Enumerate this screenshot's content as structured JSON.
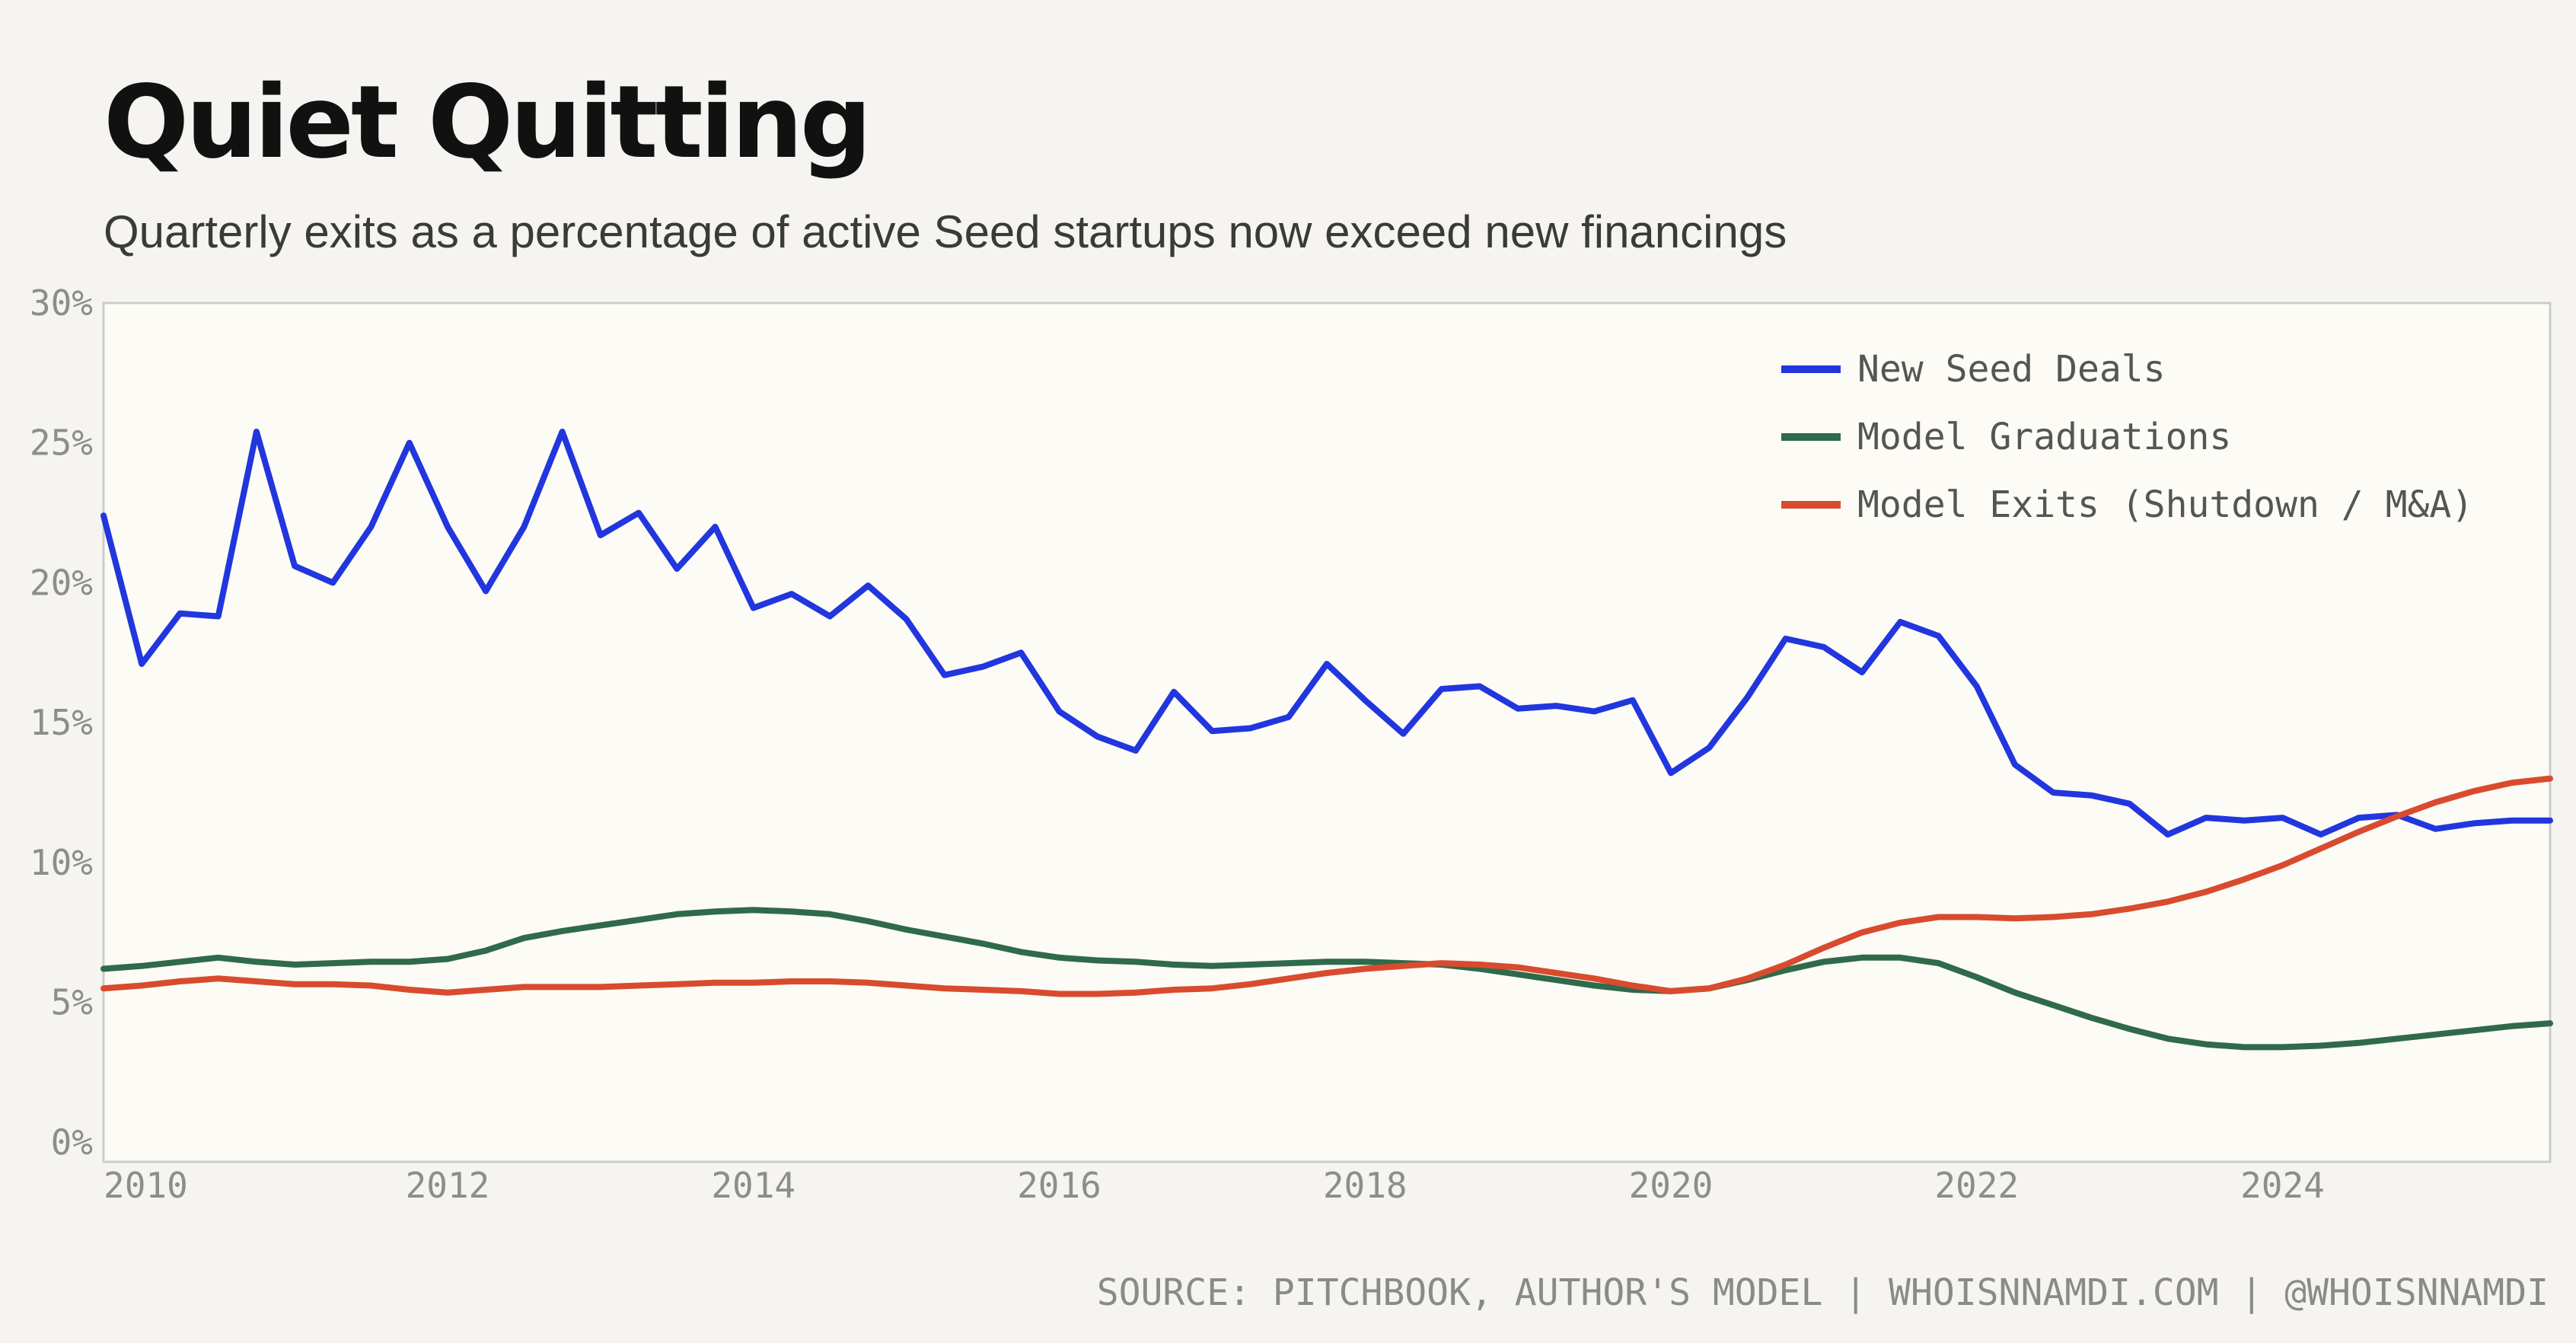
{
  "header": {
    "title": "Quiet Quitting",
    "subtitle": "Quarterly exits as a percentage of active Seed startups now exceed new financings"
  },
  "footer": {
    "source": "SOURCE: PITCHBOOK, AUTHOR'S MODEL | WHOISNNAMDI.COM | @WHOISNNAMDI"
  },
  "colors": {
    "background": "#f6f4f0",
    "plot_background": "#fcfbf6",
    "plot_border": "#cccccc"
  },
  "chart_data": {
    "type": "line",
    "title": "Quiet Quitting",
    "subtitle": "Quarterly exits as a percentage of active Seed startups now exceed new financings",
    "xlabel": "",
    "ylabel": "",
    "xlim": [
      2009.75,
      2025.75
    ],
    "ylim": [
      -0.7,
      30
    ],
    "x_ticks": [
      2010,
      2012,
      2014,
      2016,
      2018,
      2020,
      2022,
      2024
    ],
    "x_tick_labels": [
      "2010",
      "2012",
      "2014",
      "2016",
      "2018",
      "2020",
      "2022",
      "2024"
    ],
    "y_ticks": [
      0,
      5,
      10,
      15,
      20,
      25,
      30
    ],
    "y_tick_labels": [
      "0%",
      "5%",
      "10%",
      "15%",
      "20%",
      "25%",
      "30%"
    ],
    "grid": false,
    "legend": "top-right",
    "x": [
      2009.75,
      2010.0,
      2010.25,
      2010.5,
      2010.75,
      2011.0,
      2011.25,
      2011.5,
      2011.75,
      2012.0,
      2012.25,
      2012.5,
      2012.75,
      2013.0,
      2013.25,
      2013.5,
      2013.75,
      2014.0,
      2014.25,
      2014.5,
      2014.75,
      2015.0,
      2015.25,
      2015.5,
      2015.75,
      2016.0,
      2016.25,
      2016.5,
      2016.75,
      2017.0,
      2017.25,
      2017.5,
      2017.75,
      2018.0,
      2018.25,
      2018.5,
      2018.75,
      2019.0,
      2019.25,
      2019.5,
      2019.75,
      2020.0,
      2020.25,
      2020.5,
      2020.75,
      2021.0,
      2021.25,
      2021.5,
      2021.75,
      2022.0,
      2022.25,
      2022.5,
      2022.75,
      2023.0,
      2023.25,
      2023.5,
      2023.75,
      2024.0,
      2024.25,
      2024.5,
      2024.75,
      2025.0,
      2025.25,
      2025.5,
      2025.75
    ],
    "series": [
      {
        "name": "New Seed Deals",
        "color": "#2236de",
        "values": [
          22.4,
          17.1,
          18.9,
          18.8,
          25.4,
          20.6,
          20.0,
          22.0,
          25.0,
          22.0,
          19.7,
          22.0,
          25.4,
          21.7,
          22.5,
          20.5,
          22.0,
          19.1,
          19.6,
          18.8,
          19.9,
          18.7,
          16.7,
          17.0,
          17.5,
          15.4,
          14.5,
          14.0,
          16.1,
          14.7,
          14.8,
          15.2,
          17.1,
          15.8,
          14.6,
          16.2,
          16.3,
          15.5,
          15.6,
          15.4,
          15.8,
          13.2,
          14.1,
          15.9,
          18.0,
          17.7,
          16.8,
          18.6,
          18.1,
          16.3,
          13.5,
          12.5,
          12.4,
          12.1,
          11.0,
          11.6,
          11.5,
          11.6,
          11.0,
          11.6,
          11.7,
          11.2,
          11.4,
          11.5,
          11.5
        ]
      },
      {
        "name": "Model Graduations",
        "color": "#2f6a4a",
        "values": [
          6.2,
          6.3,
          6.45,
          6.6,
          6.45,
          6.35,
          6.4,
          6.45,
          6.45,
          6.55,
          6.85,
          7.3,
          7.55,
          7.75,
          7.95,
          8.15,
          8.25,
          8.3,
          8.25,
          8.15,
          7.9,
          7.6,
          7.35,
          7.1,
          6.8,
          6.6,
          6.5,
          6.45,
          6.35,
          6.3,
          6.35,
          6.4,
          6.45,
          6.45,
          6.4,
          6.35,
          6.2,
          6.0,
          5.8,
          5.6,
          5.45,
          5.4,
          5.5,
          5.8,
          6.15,
          6.45,
          6.6,
          6.6,
          6.4,
          5.9,
          5.35,
          4.9,
          4.45,
          4.05,
          3.7,
          3.5,
          3.4,
          3.4,
          3.45,
          3.55,
          3.7,
          3.85,
          4.0,
          4.15,
          4.25
        ]
      },
      {
        "name": "Model Exits (Shutdown / M&A)",
        "color": "#d84b2e",
        "values": [
          5.5,
          5.6,
          5.75,
          5.85,
          5.75,
          5.65,
          5.65,
          5.6,
          5.45,
          5.35,
          5.45,
          5.55,
          5.55,
          5.55,
          5.6,
          5.65,
          5.7,
          5.7,
          5.75,
          5.75,
          5.7,
          5.6,
          5.5,
          5.45,
          5.4,
          5.3,
          5.3,
          5.35,
          5.45,
          5.5,
          5.65,
          5.85,
          6.05,
          6.2,
          6.3,
          6.4,
          6.35,
          6.25,
          6.05,
          5.85,
          5.6,
          5.4,
          5.5,
          5.85,
          6.35,
          6.95,
          7.5,
          7.85,
          8.05,
          8.05,
          8.0,
          8.05,
          8.15,
          8.35,
          8.6,
          8.95,
          9.4,
          9.9,
          10.5,
          11.1,
          11.65,
          12.15,
          12.55,
          12.85,
          13.0
        ]
      }
    ]
  }
}
